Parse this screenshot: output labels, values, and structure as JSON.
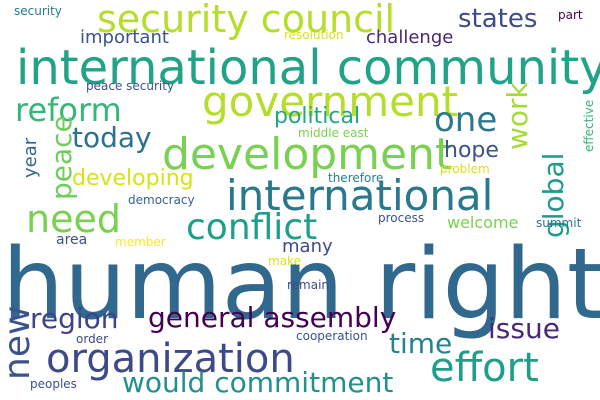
{
  "words": [
    {
      "text": "human right",
      "color": "#31688e"
    },
    {
      "text": "international community",
      "color": "#20a386"
    },
    {
      "text": "security council",
      "color": "#b5de2b"
    },
    {
      "text": "development",
      "color": "#7ad151"
    },
    {
      "text": "government",
      "color": "#b5de2b"
    },
    {
      "text": "international",
      "color": "#2a788e"
    },
    {
      "text": "organization",
      "color": "#3e4989"
    },
    {
      "text": "effort",
      "color": "#1f9e89"
    },
    {
      "text": "need",
      "color": "#7ad151"
    },
    {
      "text": "conflict",
      "color": "#1f9e89"
    },
    {
      "text": "would commitment",
      "color": "#21918c"
    },
    {
      "text": "general assembly",
      "color": "#440154"
    },
    {
      "text": "reform",
      "color": "#35b779"
    },
    {
      "text": "one",
      "color": "#2a788e"
    },
    {
      "text": "new",
      "color": "#3b528b"
    },
    {
      "text": "region",
      "color": "#404387"
    },
    {
      "text": "today",
      "color": "#2c728e"
    },
    {
      "text": "peace",
      "color": "#6ece58"
    },
    {
      "text": "issue",
      "color": "#482878"
    },
    {
      "text": "time",
      "color": "#26828e"
    },
    {
      "text": "global",
      "color": "#1e9b8a"
    },
    {
      "text": "work",
      "color": "#a5db36"
    },
    {
      "text": "states",
      "color": "#3e4a89"
    },
    {
      "text": "developing",
      "color": "#d8e219"
    },
    {
      "text": "political",
      "color": "#22a785"
    },
    {
      "text": "hope",
      "color": "#3b528b"
    },
    {
      "text": "important",
      "color": "#3b528b"
    },
    {
      "text": "challenge",
      "color": "#482878"
    },
    {
      "text": "many",
      "color": "#3e4989"
    },
    {
      "text": "year",
      "color": "#31688e"
    },
    {
      "text": "welcome",
      "color": "#7ad151"
    },
    {
      "text": "area",
      "color": "#3b528b"
    },
    {
      "text": "security",
      "color": "#2a788e"
    },
    {
      "text": "resolution",
      "color": "#d8e219"
    },
    {
      "text": "part",
      "color": "#440154"
    },
    {
      "text": "peace security",
      "color": "#3b528b"
    },
    {
      "text": "middle east",
      "color": "#7ad151"
    },
    {
      "text": "therefore",
      "color": "#26828e"
    },
    {
      "text": "problem",
      "color": "#d8e219"
    },
    {
      "text": "democracy",
      "color": "#33638d"
    },
    {
      "text": "process",
      "color": "#3b528b"
    },
    {
      "text": "summit",
      "color": "#2a788e"
    },
    {
      "text": "member",
      "color": "#fde725"
    },
    {
      "text": "make",
      "color": "#d8e219"
    },
    {
      "text": "remain",
      "color": "#3e4989"
    },
    {
      "text": "cooperation",
      "color": "#3b528b"
    },
    {
      "text": "order",
      "color": "#3e4989"
    },
    {
      "text": "peoples",
      "color": "#3b528b"
    },
    {
      "text": "effective",
      "color": "#35b779"
    }
  ]
}
